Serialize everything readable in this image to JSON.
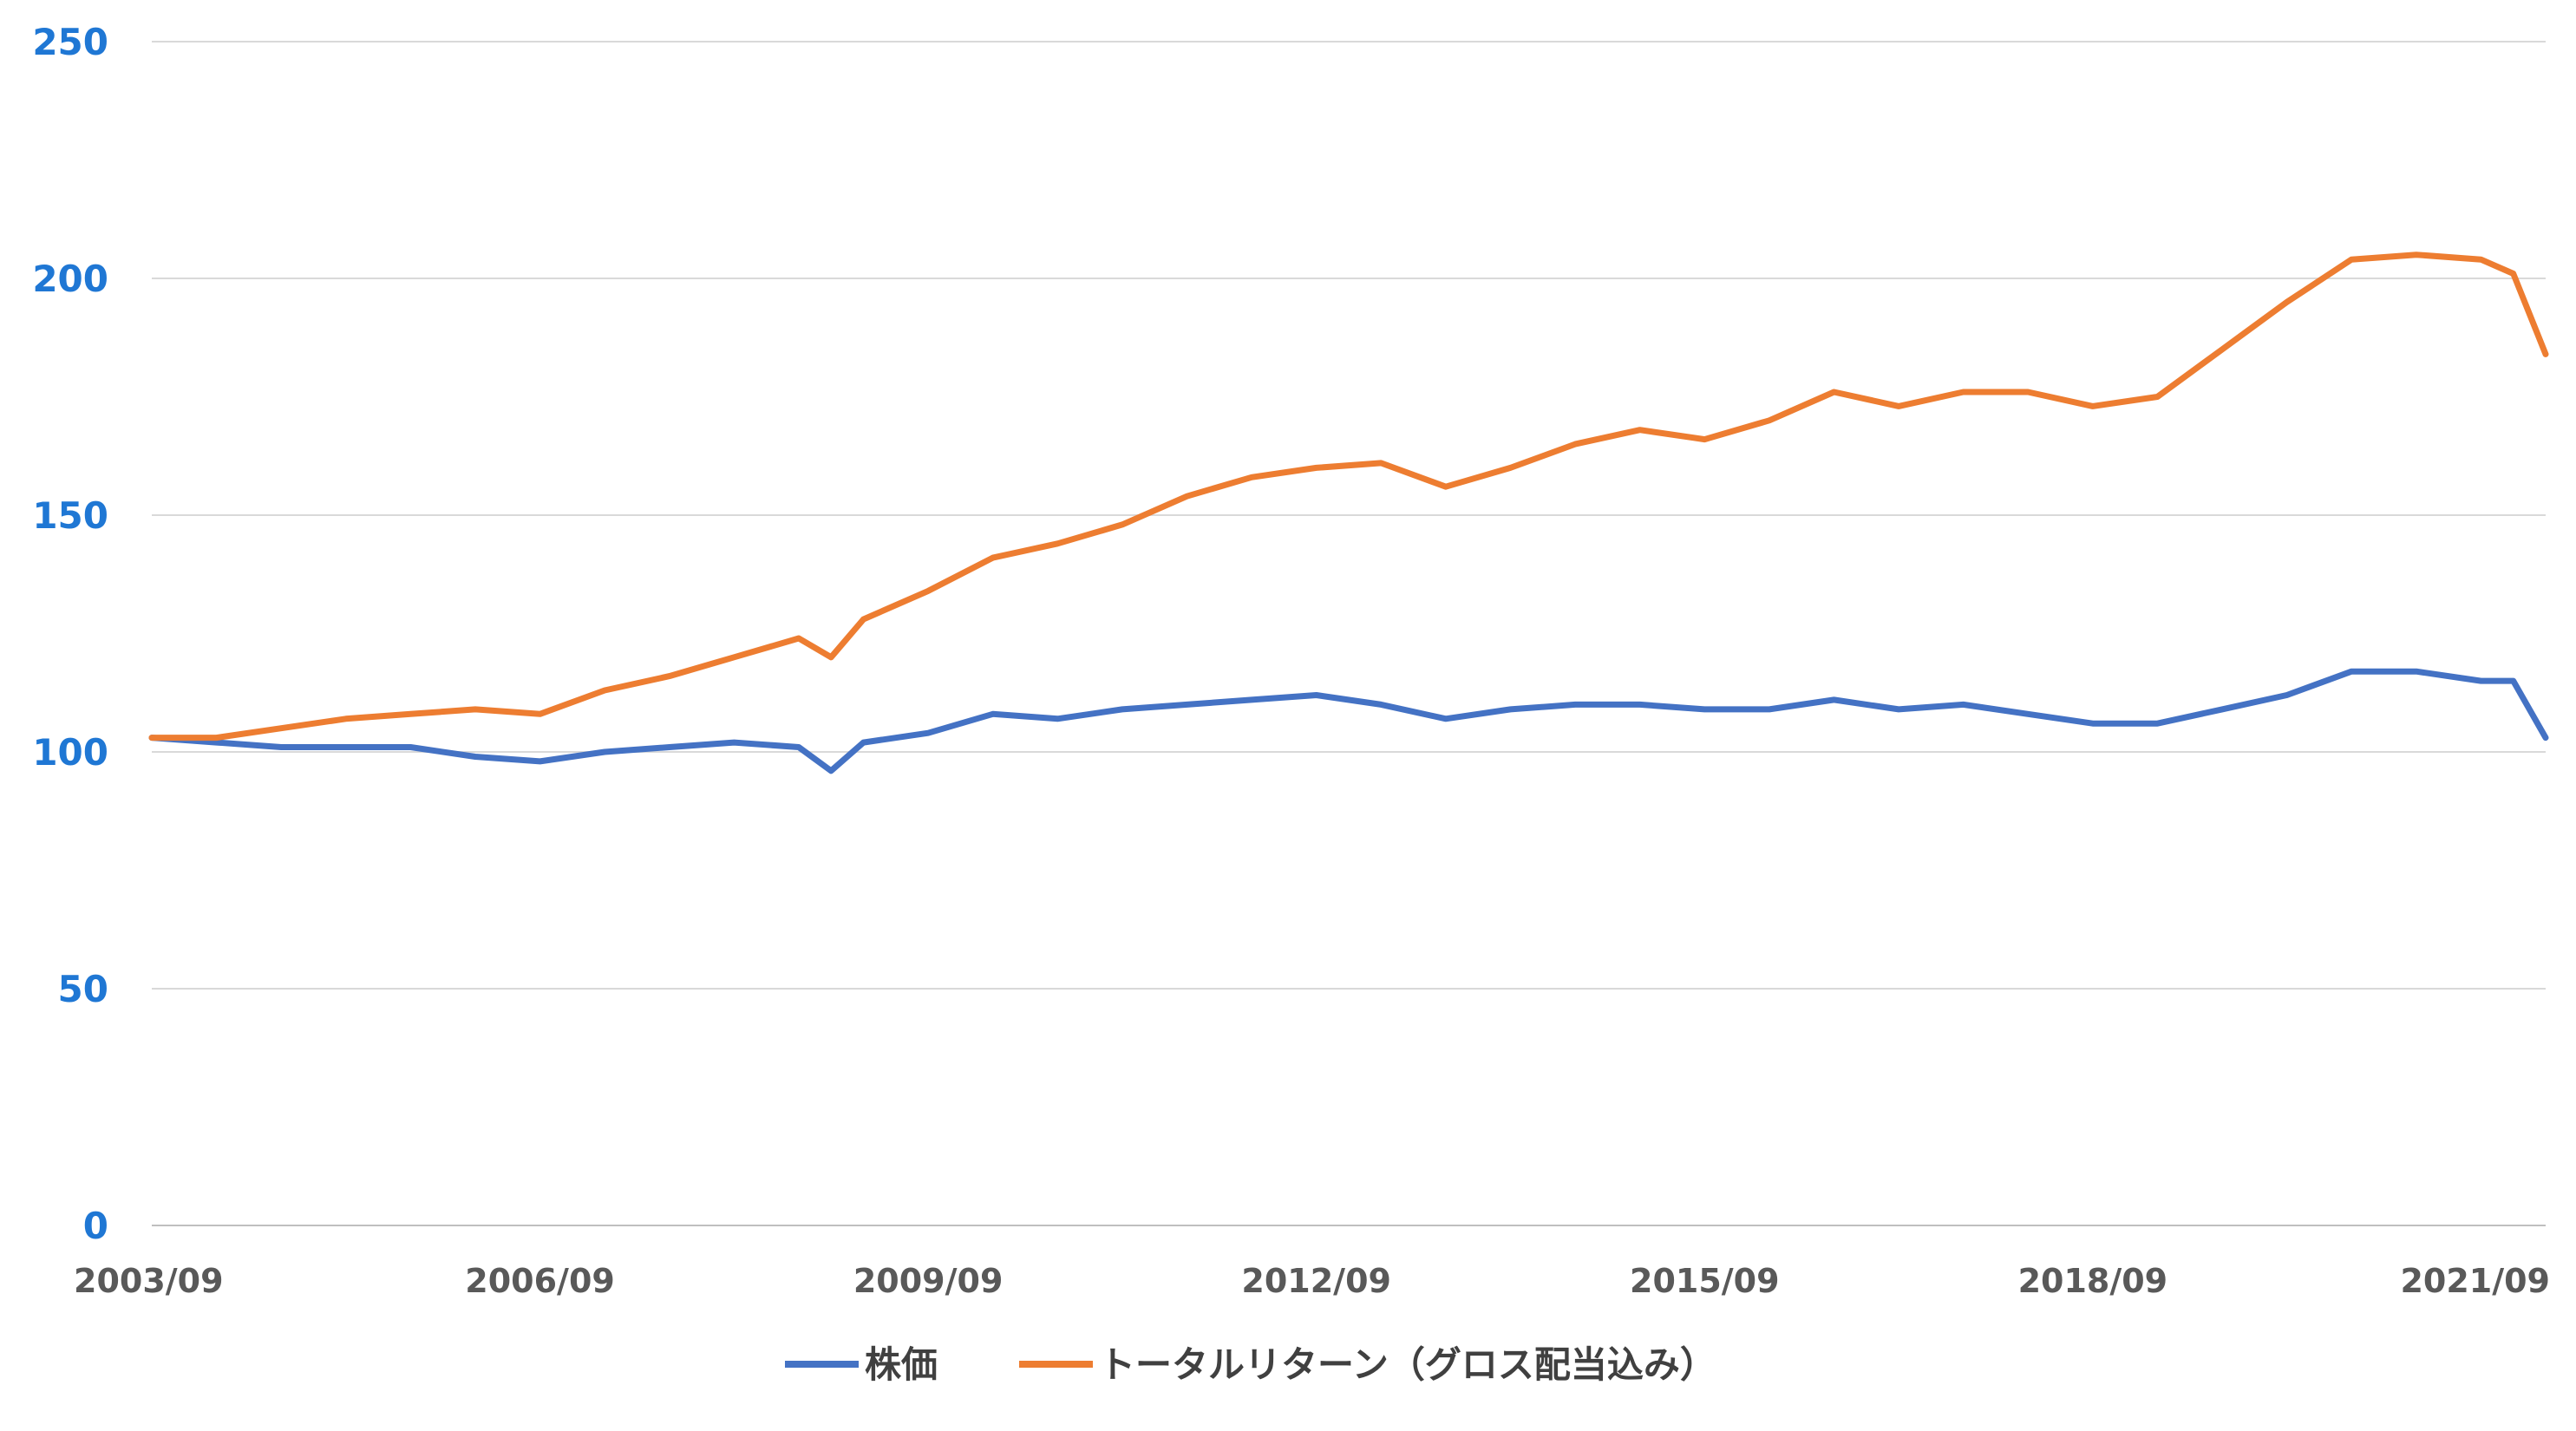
{
  "chart_data": {
    "type": "line",
    "title": "",
    "xlabel": "",
    "ylabel": "",
    "ylim": [
      0,
      250
    ],
    "yticks": [
      0,
      50,
      100,
      150,
      200,
      250
    ],
    "xtick_labels": [
      "2003/09",
      "2006/09",
      "2009/09",
      "2012/09",
      "2015/09",
      "2018/09",
      "2021/09"
    ],
    "grid": "horizontal",
    "legend_position": "bottom",
    "x": [
      "2003/09",
      "2004/03",
      "2004/09",
      "2005/03",
      "2005/09",
      "2006/03",
      "2006/09",
      "2007/03",
      "2007/09",
      "2008/03",
      "2008/09",
      "2008/12",
      "2009/03",
      "2009/09",
      "2010/03",
      "2010/09",
      "2011/03",
      "2011/09",
      "2012/03",
      "2012/09",
      "2013/03",
      "2013/09",
      "2014/03",
      "2014/09",
      "2015/03",
      "2015/09",
      "2016/03",
      "2016/09",
      "2017/03",
      "2017/09",
      "2018/03",
      "2018/09",
      "2019/03",
      "2019/09",
      "2020/03",
      "2020/09",
      "2021/03",
      "2021/09",
      "2021/12",
      "2022/03"
    ],
    "series": [
      {
        "name": "株価",
        "color": "#4472c4",
        "values": [
          103,
          102,
          101,
          101,
          101,
          99,
          98,
          100,
          101,
          102,
          101,
          96,
          102,
          104,
          108,
          107,
          109,
          110,
          111,
          112,
          110,
          107,
          109,
          110,
          110,
          109,
          109,
          111,
          109,
          110,
          108,
          106,
          106,
          109,
          112,
          117,
          117,
          115,
          115,
          103
        ]
      },
      {
        "name": "トータルリターン（グロス配当込み）",
        "color": "#ed7d31",
        "values": [
          103,
          103,
          105,
          107,
          108,
          109,
          108,
          113,
          116,
          120,
          124,
          120,
          128,
          134,
          141,
          144,
          148,
          154,
          158,
          160,
          161,
          156,
          160,
          165,
          168,
          166,
          170,
          176,
          173,
          176,
          176,
          173,
          175,
          185,
          195,
          204,
          205,
          204,
          201,
          184
        ]
      }
    ]
  },
  "legend": {
    "items": [
      "株価",
      "トータルリターン（グロス配当込み）"
    ]
  }
}
